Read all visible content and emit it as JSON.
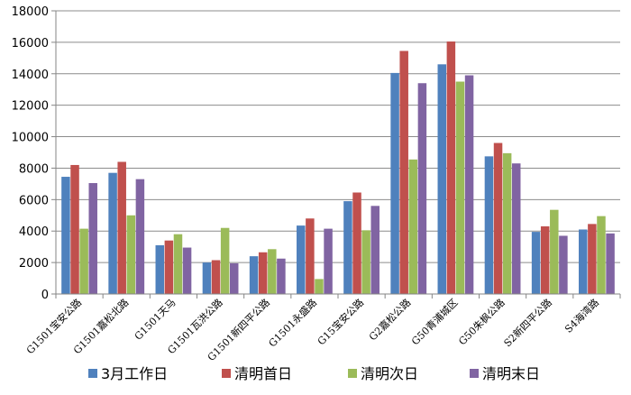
{
  "chart_data": {
    "type": "bar",
    "categories": [
      "G1501宝安公路",
      "G1501嘉松北路",
      "G1501天马",
      "G1501瓦洪公路",
      "G1501新四平公路",
      "G1501永盛路",
      "G15宝安公路",
      "G2嘉松公路",
      "G50青浦城区",
      "G50朱枫公路",
      "S2新四平公路",
      "S4海湾路"
    ],
    "series": [
      {
        "name": "3月工作日",
        "color": "#4f81bd",
        "values": [
          7450,
          7700,
          3100,
          2000,
          2400,
          4350,
          5900,
          14050,
          14600,
          8750,
          3950,
          4100
        ]
      },
      {
        "name": "清明首日",
        "color": "#c0504d",
        "values": [
          8200,
          8400,
          3400,
          2150,
          2650,
          4800,
          6450,
          15450,
          16050,
          9600,
          4300,
          4450
        ]
      },
      {
        "name": "清明次日",
        "color": "#9bbb59",
        "values": [
          4150,
          5000,
          3800,
          4200,
          2850,
          950,
          4050,
          8550,
          13500,
          8950,
          5350,
          4950
        ]
      },
      {
        "name": "清明末日",
        "color": "#8064a2",
        "values": [
          7050,
          7300,
          2950,
          1950,
          2250,
          4150,
          5600,
          13400,
          13900,
          8300,
          3700,
          3850
        ]
      }
    ],
    "ylim": [
      0,
      18000
    ],
    "yticks": [
      "0",
      "2000",
      "4000",
      "6000",
      "8000",
      "10000",
      "12000",
      "14000",
      "16000",
      "18000"
    ],
    "grid": true,
    "legend_position": "bottom",
    "title": "",
    "xlabel": "",
    "ylabel": ""
  }
}
